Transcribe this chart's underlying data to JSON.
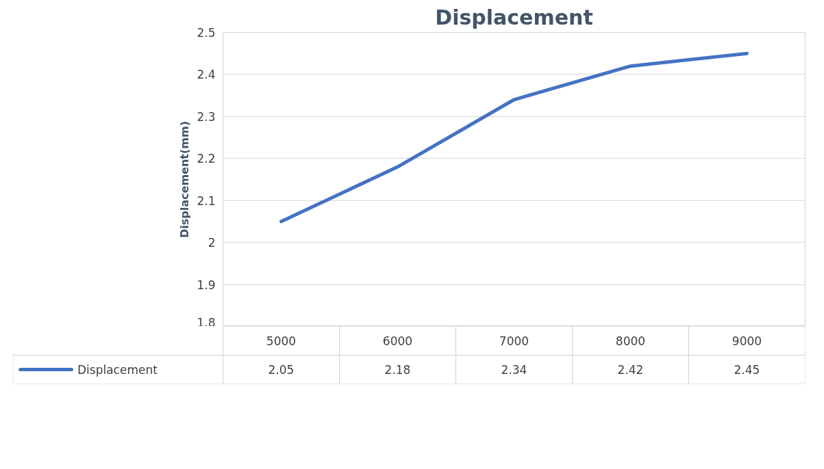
{
  "chart_data": {
    "type": "line",
    "title": "Displacement",
    "ylabel": "Displacement(mm)",
    "categories": [
      "5000",
      "6000",
      "7000",
      "8000",
      "9000"
    ],
    "series": [
      {
        "name": "Displacement",
        "color": "#4472c4",
        "values": [
          2.05,
          2.18,
          2.34,
          2.42,
          2.45
        ]
      }
    ],
    "ylim": [
      1.8,
      2.5
    ],
    "yticks": [
      1.8,
      1.9,
      2,
      2.1,
      2.2,
      2.3,
      2.4,
      2.5
    ],
    "grid": "y",
    "legend": "bottom",
    "data_labels": true
  }
}
